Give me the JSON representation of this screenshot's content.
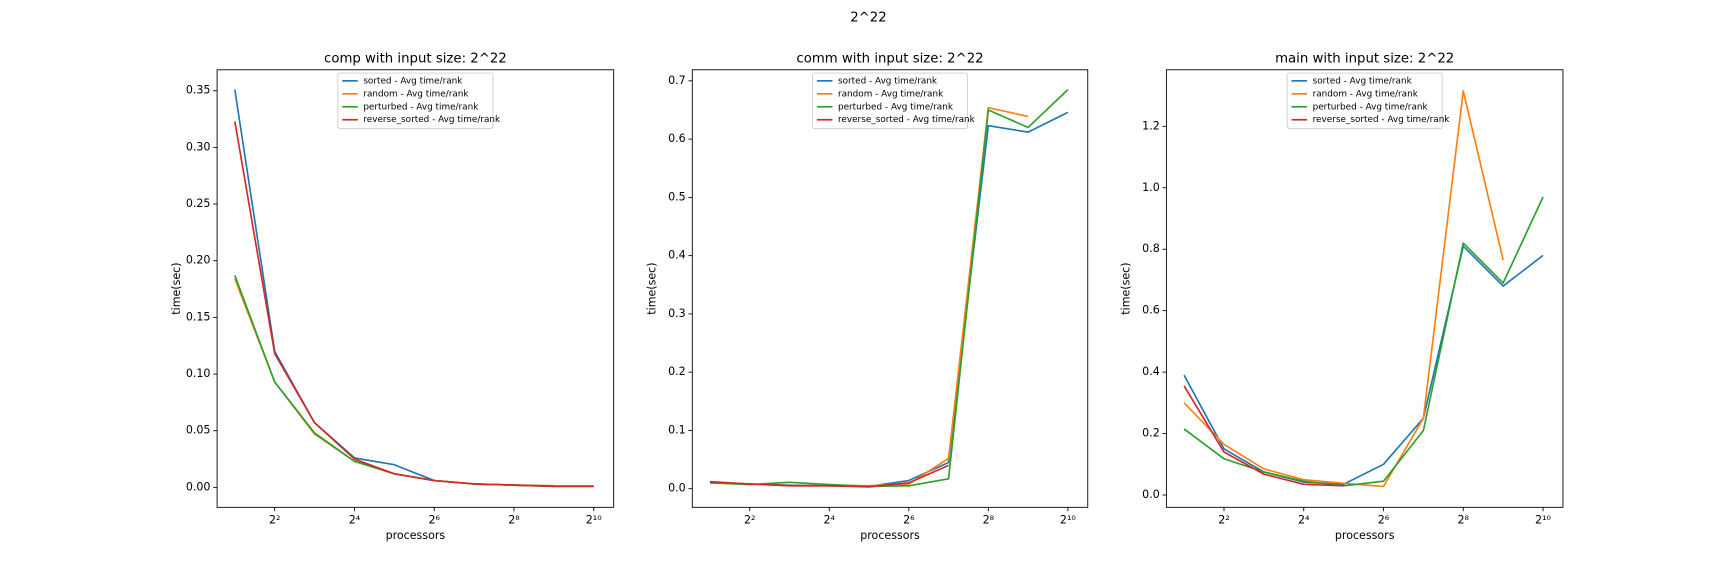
{
  "title": "2^22",
  "chart_data": [
    {
      "type": "line",
      "title": "comp with input size: 2^22",
      "xlabel": "processors",
      "ylabel": "time(sec)",
      "xscale": "log",
      "xscale_base": 2,
      "grid": false,
      "legend": "upper center",
      "x": [
        2,
        4,
        8,
        16,
        32,
        64,
        128,
        256,
        512,
        1024
      ],
      "xlim": [
        1.47,
        1448
      ],
      "xticks": [
        {
          "value": 4,
          "label": "2²"
        },
        {
          "value": 16,
          "label": "2⁴"
        },
        {
          "value": 64,
          "label": "2⁶"
        },
        {
          "value": 256,
          "label": "2⁸"
        },
        {
          "value": 1024,
          "label": "2¹⁰"
        }
      ],
      "ylim": [
        -0.0176,
        0.3685
      ],
      "yticks": [
        {
          "value": 0,
          "label": "0.00"
        },
        0.05,
        {
          "value": 0.1,
          "label": "0.10"
        },
        0.15,
        {
          "value": 0.2,
          "label": "0.20"
        },
        0.25,
        {
          "value": 0.3,
          "label": "0.30"
        },
        0.35
      ],
      "series": [
        {
          "name": "sorted - Avg time/rank",
          "color": "#1f77b4",
          "values": [
            0.351,
            0.12,
            0.057,
            0.026,
            0.02,
            0.006,
            0.003,
            0.002,
            0.001,
            0.001
          ]
        },
        {
          "name": "random - Avg time/rank",
          "color": "#ff7f0e",
          "values": [
            0.184,
            0.093,
            0.047,
            0.023,
            0.012,
            0.006,
            0.003,
            0.002,
            0.0015,
            null
          ]
        },
        {
          "name": "perturbed - Avg time/rank",
          "color": "#2ca02c",
          "values": [
            0.187,
            0.093,
            0.048,
            0.023,
            0.012,
            0.006,
            0.003,
            0.002,
            0.001,
            0.001
          ]
        },
        {
          "name": "reverse_sorted - Avg time/rank",
          "color": "#d62728",
          "values": [
            0.323,
            0.118,
            0.057,
            0.025,
            0.012,
            0.006,
            0.003,
            0.002,
            0.001,
            0.001
          ]
        }
      ]
    },
    {
      "type": "line",
      "title": "comm with input size: 2^22",
      "xlabel": "processors",
      "ylabel": "time(sec)",
      "xscale": "log",
      "xscale_base": 2,
      "grid": false,
      "legend": "upper center",
      "x": [
        2,
        4,
        8,
        16,
        32,
        64,
        128,
        256,
        512,
        1024
      ],
      "xlim": [
        1.47,
        1448
      ],
      "xticks": [
        {
          "value": 4,
          "label": "2²"
        },
        {
          "value": 16,
          "label": "2⁴"
        },
        {
          "value": 64,
          "label": "2⁶"
        },
        {
          "value": 256,
          "label": "2⁸"
        },
        {
          "value": 1024,
          "label": "2¹⁰"
        }
      ],
      "ylim": [
        -0.032,
        0.719
      ],
      "yticks": [
        {
          "value": 0,
          "label": "0.0"
        },
        0.1,
        0.2,
        0.3,
        0.4,
        0.5,
        0.6,
        0.7
      ],
      "series": [
        {
          "name": "sorted - Avg time/rank",
          "color": "#1f77b4",
          "values": [
            0.01,
            0.008,
            0.006,
            0.005,
            0.004,
            0.014,
            0.045,
            0.623,
            0.612,
            0.646
          ]
        },
        {
          "name": "random - Avg time/rank",
          "color": "#ff7f0e",
          "values": [
            0.012,
            0.008,
            0.005,
            0.005,
            0.005,
            0.008,
            0.052,
            0.654,
            0.639,
            null
          ]
        },
        {
          "name": "perturbed - Avg time/rank",
          "color": "#2ca02c",
          "values": [
            0.01,
            0.007,
            0.011,
            0.007,
            0.004,
            0.005,
            0.017,
            0.65,
            0.62,
            0.685
          ]
        },
        {
          "name": "reverse_sorted - Avg time/rank",
          "color": "#d62728",
          "values": [
            0.012,
            0.008,
            0.005,
            0.005,
            0.003,
            0.01,
            0.04,
            null,
            null,
            null
          ]
        }
      ]
    },
    {
      "type": "line",
      "title": "main with input size: 2^22",
      "xlabel": "processors",
      "ylabel": "time(sec)",
      "xscale": "log",
      "xscale_base": 2,
      "grid": false,
      "legend": "upper center",
      "x": [
        2,
        4,
        8,
        16,
        32,
        64,
        128,
        256,
        512,
        1024
      ],
      "xlim": [
        1.47,
        1448
      ],
      "xticks": [
        {
          "value": 4,
          "label": "2²"
        },
        {
          "value": 16,
          "label": "2⁴"
        },
        {
          "value": 64,
          "label": "2⁶"
        },
        {
          "value": 256,
          "label": "2⁸"
        },
        {
          "value": 1024,
          "label": "2¹⁰"
        }
      ],
      "ylim": [
        -0.04,
        1.384
      ],
      "yticks": [
        {
          "value": 0,
          "label": "0.0"
        },
        0.2,
        0.4,
        0.6,
        0.8,
        {
          "value": 1,
          "label": "1.0"
        },
        1.2
      ],
      "series": [
        {
          "name": "sorted - Avg time/rank",
          "color": "#1f77b4",
          "values": [
            0.39,
            0.15,
            0.075,
            0.042,
            0.035,
            0.1,
            0.25,
            0.81,
            0.68,
            0.78
          ]
        },
        {
          "name": "random - Avg time/rank",
          "color": "#ff7f0e",
          "values": [
            0.3,
            0.165,
            0.085,
            0.05,
            0.038,
            0.028,
            0.25,
            1.315,
            0.765,
            null
          ]
        },
        {
          "name": "perturbed - Avg time/rank",
          "color": "#2ca02c",
          "values": [
            0.215,
            0.118,
            0.075,
            0.045,
            0.03,
            0.045,
            0.21,
            0.82,
            0.69,
            0.97
          ]
        },
        {
          "name": "reverse_sorted - Avg time/rank",
          "color": "#d62728",
          "values": [
            0.355,
            0.14,
            0.068,
            0.035,
            0.03,
            null,
            null,
            null,
            null,
            null
          ]
        }
      ]
    }
  ]
}
